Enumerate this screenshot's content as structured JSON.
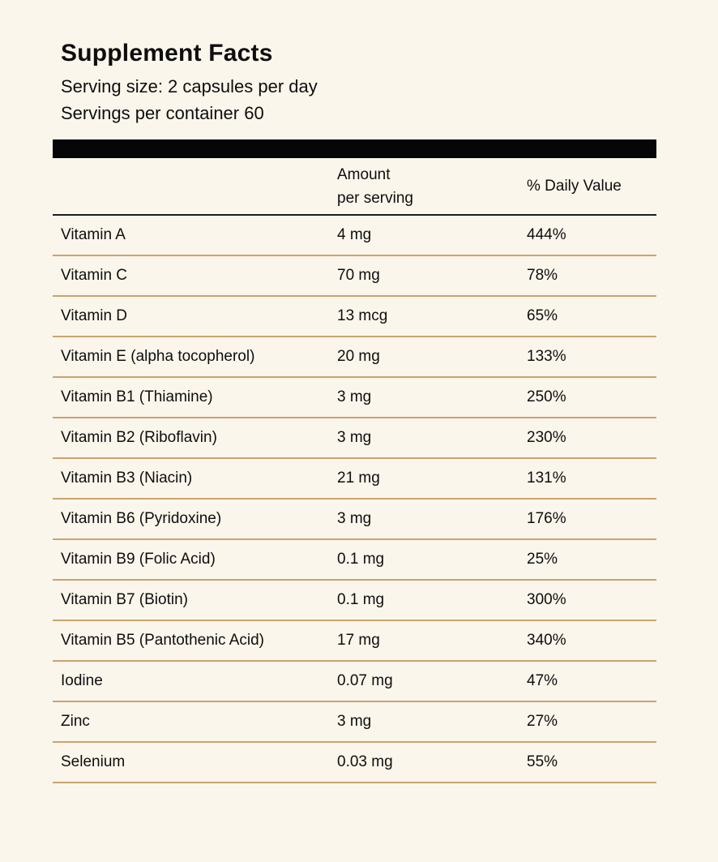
{
  "label": {
    "title": "Supplement Facts",
    "serving_size": "Serving size: 2 capsules per day",
    "servings_per_container": "Servings per container 60"
  },
  "table": {
    "headers": {
      "amount_line1": "Amount",
      "amount_line2": "per serving",
      "daily_value": "% Daily Value"
    },
    "rows": [
      {
        "name": "Vitamin A",
        "amount": "4 mg",
        "dv": "444%"
      },
      {
        "name": "Vitamin C",
        "amount": "70 mg",
        "dv": "78%"
      },
      {
        "name": "Vitamin D",
        "amount": "13 mcg",
        "dv": "65%"
      },
      {
        "name": "Vitamin E (alpha tocopherol)",
        "amount": "20 mg",
        "dv": "133%"
      },
      {
        "name": "Vitamin B1 (Thiamine)",
        "amount": "3 mg",
        "dv": "250%"
      },
      {
        "name": "Vitamin B2 (Riboflavin)",
        "amount": "3 mg",
        "dv": "230%"
      },
      {
        "name": "Vitamin B3 (Niacin)",
        "amount": "21 mg",
        "dv": "131%"
      },
      {
        "name": "Vitamin B6 (Pyridoxine)",
        "amount": "3 mg",
        "dv": "176%"
      },
      {
        "name": "Vitamin B9 (Folic Acid)",
        "amount": "0.1 mg",
        "dv": "25%"
      },
      {
        "name": "Vitamin B7 (Biotin)",
        "amount": "0.1 mg",
        "dv": "300%"
      },
      {
        "name": "Vitamin B5 (Pantothenic Acid)",
        "amount": "17 mg",
        "dv": "340%"
      },
      {
        "name": "Iodine",
        "amount": "0.07 mg",
        "dv": "47%"
      },
      {
        "name": "Zinc",
        "amount": "3 mg",
        "dv": "27%"
      },
      {
        "name": "Selenium",
        "amount": "0.03 mg",
        "dv": "55%"
      }
    ]
  },
  "colors": {
    "background": "#FBF6EC",
    "row_separator": "#C8A46E",
    "header_rule": "#1E1E1E",
    "header_bar": "#060606",
    "text": "#0E0E0E"
  }
}
